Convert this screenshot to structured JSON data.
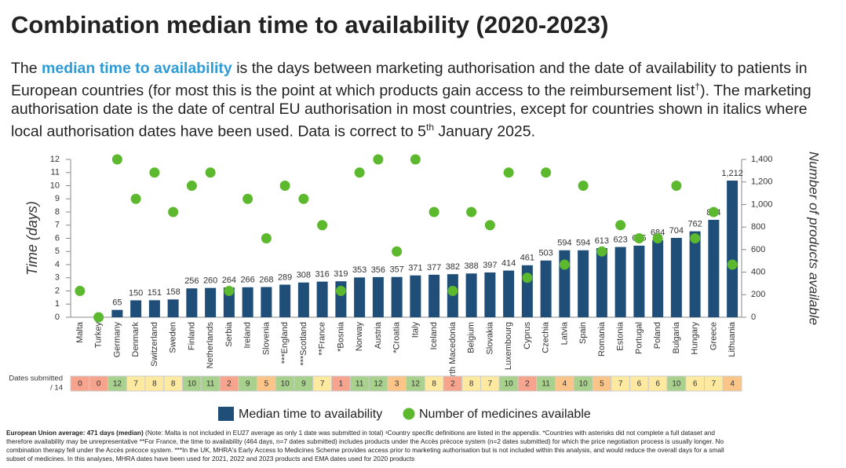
{
  "header": {
    "title": "Combination median time to availability (2020-2023)",
    "description": [
      "The ",
      "median time to availability",
      " is the days between marketing authorisation and the date of availability to patients in European countries (for most this is the point at which products gain access to the reimbursement list",
      "†",
      "). The marketing authorisation date is the date of central EU authorisation in most countries, except for countries shown in italics where local authorisation dates have been used. Data is correct to 5",
      "th",
      " January 2025."
    ]
  },
  "chart_data": {
    "type": "combo",
    "categories": [
      "Malta",
      "Turkey",
      "Germany",
      "Denmark",
      "Switzerland",
      "Sweden",
      "Finland",
      "Netherlands",
      "Serbia",
      "Ireland",
      "Slovenia",
      "***England",
      "***Scotland",
      "**France",
      "*Bosnia",
      "Norway",
      "Austria",
      "*Croatia",
      "Italy",
      "Iceland",
      "*North Macedonia",
      "Belgium",
      "Slovakia",
      "Luxembourg",
      "Cyprus",
      "Czechia",
      "Latvia",
      "Spain",
      "Romania",
      "Estonia",
      "Portugal",
      "Poland",
      "Bulgaria",
      "Hungary",
      "Greece",
      "Lithuania"
    ],
    "series": [
      {
        "name": "Median time to availability",
        "type": "bar",
        "axis": "y2",
        "color": "#1f4e79",
        "values": [
          null,
          null,
          65,
          150,
          151,
          158,
          256,
          260,
          264,
          266,
          268,
          289,
          308,
          316,
          319,
          353,
          356,
          357,
          371,
          377,
          382,
          388,
          397,
          414,
          461,
          503,
          594,
          594,
          613,
          623,
          635,
          684,
          704,
          762,
          864,
          1212
        ],
        "value_labels": [
          null,
          null,
          "65",
          "150",
          "151",
          "158",
          "256",
          "260",
          "264",
          "266",
          "268",
          "289",
          "308",
          "316",
          "319",
          "353",
          "356",
          "357",
          "371",
          "377",
          "382",
          "388",
          "397",
          "414",
          "461",
          "503",
          "594",
          "594",
          "613",
          "623",
          "635",
          "684",
          "704",
          "762",
          "864",
          "1,212"
        ]
      },
      {
        "name": "Number of medicines available",
        "type": "scatter",
        "color": "#5cb82c",
        "values": [
          2,
          0,
          12,
          9,
          11,
          8,
          10,
          11,
          2,
          9,
          6,
          10,
          9,
          7,
          2,
          11,
          12,
          5,
          12,
          8,
          2,
          8,
          7,
          11,
          3,
          11,
          4,
          10,
          5,
          7,
          6,
          6,
          10,
          6,
          8,
          4
        ]
      }
    ],
    "ylim": [
      0,
      12
    ],
    "yticks": [
      0,
      1,
      2,
      3,
      4,
      5,
      6,
      7,
      8,
      9,
      10,
      11,
      12
    ],
    "y2lim": [
      0,
      1400
    ],
    "y2ticks": [
      0,
      200,
      400,
      600,
      800,
      {
        "value": 1000,
        "label": "1,000"
      },
      {
        "value": 1200,
        "label": "1,200"
      },
      {
        "value": 1400,
        "label": "1,400"
      }
    ],
    "ylabel": "Time (days)",
    "y2label": "Number of products available",
    "dates_submitted": {
      "label": "Dates submitted",
      "sublabel": "/ 14",
      "values": [
        0,
        0,
        12,
        7,
        8,
        8,
        10,
        11,
        2,
        9,
        5,
        10,
        9,
        7,
        1,
        11,
        12,
        3,
        12,
        8,
        2,
        8,
        7,
        10,
        2,
        11,
        4,
        10,
        5,
        7,
        6,
        6,
        10,
        6,
        7,
        4
      ]
    }
  },
  "footnote": {
    "bold": "European Union average: 471 days (median)",
    "text": " (Note: Malta is not included in EU27 average as only 1 date was submitted in total) ¹Country specific definitions are listed in the appendix. *Countries with asterisks did not complete a full dataset and therefore availability may be unrepresentative **For France, the time to availability (464 days, n=7 dates submitted) includes products under the Accès précoce system (n=2 dates submitted) for which the price negotiation process is usually longer. No combination therapy fell under the Accès précoce system. ***In the UK, MHRA's Early Access to Medicines Scheme provides access prior to marketing authorisation but is not included within this analysis, and would reduce the overall days for a small subset of medicines. In this analyses, MHRA dates have been used for 2021, 2022 and 2023 products and EMA dates used for 2020 products"
  }
}
